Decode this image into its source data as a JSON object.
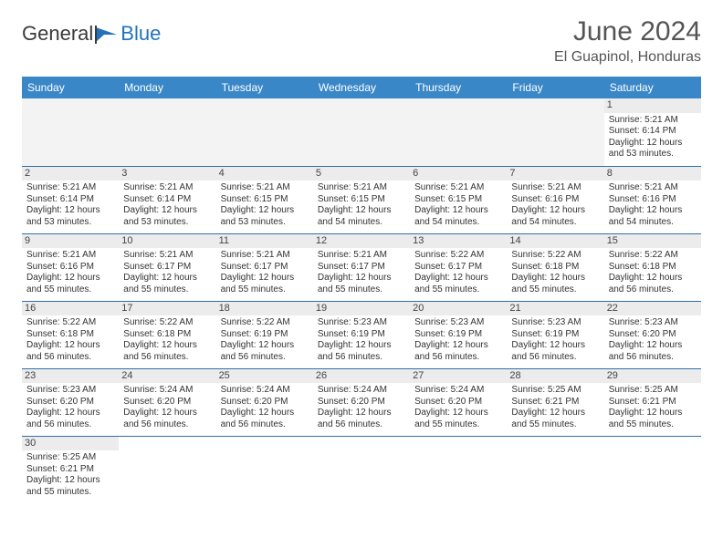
{
  "brand": {
    "part1": "General",
    "part2": "Blue"
  },
  "title": "June 2024",
  "location": "El Guapinol, Honduras",
  "colors": {
    "header_bg": "#3a87c8",
    "header_text": "#ffffff",
    "daynum_bg": "#ececec",
    "empty_bg": "#f3f3f3",
    "row_border": "#2f6fa8",
    "title_color": "#555555",
    "text_color": "#333333",
    "brand_blue": "#2273b9"
  },
  "typography": {
    "title_fontsize": 30,
    "location_fontsize": 16,
    "dayheader_fontsize": 12,
    "daynum_fontsize": 11,
    "cell_fontsize": 10
  },
  "day_headers": [
    "Sunday",
    "Monday",
    "Tuesday",
    "Wednesday",
    "Thursday",
    "Friday",
    "Saturday"
  ],
  "weeks": [
    [
      {
        "n": "",
        "sr": "",
        "ss": "",
        "dl1": "",
        "dl2": "",
        "empty": true
      },
      {
        "n": "",
        "sr": "",
        "ss": "",
        "dl1": "",
        "dl2": "",
        "empty": true
      },
      {
        "n": "",
        "sr": "",
        "ss": "",
        "dl1": "",
        "dl2": "",
        "empty": true
      },
      {
        "n": "",
        "sr": "",
        "ss": "",
        "dl1": "",
        "dl2": "",
        "empty": true
      },
      {
        "n": "",
        "sr": "",
        "ss": "",
        "dl1": "",
        "dl2": "",
        "empty": true
      },
      {
        "n": "",
        "sr": "",
        "ss": "",
        "dl1": "",
        "dl2": "",
        "empty": true
      },
      {
        "n": "1",
        "sr": "Sunrise: 5:21 AM",
        "ss": "Sunset: 6:14 PM",
        "dl1": "Daylight: 12 hours",
        "dl2": "and 53 minutes."
      }
    ],
    [
      {
        "n": "2",
        "sr": "Sunrise: 5:21 AM",
        "ss": "Sunset: 6:14 PM",
        "dl1": "Daylight: 12 hours",
        "dl2": "and 53 minutes."
      },
      {
        "n": "3",
        "sr": "Sunrise: 5:21 AM",
        "ss": "Sunset: 6:14 PM",
        "dl1": "Daylight: 12 hours",
        "dl2": "and 53 minutes."
      },
      {
        "n": "4",
        "sr": "Sunrise: 5:21 AM",
        "ss": "Sunset: 6:15 PM",
        "dl1": "Daylight: 12 hours",
        "dl2": "and 53 minutes."
      },
      {
        "n": "5",
        "sr": "Sunrise: 5:21 AM",
        "ss": "Sunset: 6:15 PM",
        "dl1": "Daylight: 12 hours",
        "dl2": "and 54 minutes."
      },
      {
        "n": "6",
        "sr": "Sunrise: 5:21 AM",
        "ss": "Sunset: 6:15 PM",
        "dl1": "Daylight: 12 hours",
        "dl2": "and 54 minutes."
      },
      {
        "n": "7",
        "sr": "Sunrise: 5:21 AM",
        "ss": "Sunset: 6:16 PM",
        "dl1": "Daylight: 12 hours",
        "dl2": "and 54 minutes."
      },
      {
        "n": "8",
        "sr": "Sunrise: 5:21 AM",
        "ss": "Sunset: 6:16 PM",
        "dl1": "Daylight: 12 hours",
        "dl2": "and 54 minutes."
      }
    ],
    [
      {
        "n": "9",
        "sr": "Sunrise: 5:21 AM",
        "ss": "Sunset: 6:16 PM",
        "dl1": "Daylight: 12 hours",
        "dl2": "and 55 minutes."
      },
      {
        "n": "10",
        "sr": "Sunrise: 5:21 AM",
        "ss": "Sunset: 6:17 PM",
        "dl1": "Daylight: 12 hours",
        "dl2": "and 55 minutes."
      },
      {
        "n": "11",
        "sr": "Sunrise: 5:21 AM",
        "ss": "Sunset: 6:17 PM",
        "dl1": "Daylight: 12 hours",
        "dl2": "and 55 minutes."
      },
      {
        "n": "12",
        "sr": "Sunrise: 5:21 AM",
        "ss": "Sunset: 6:17 PM",
        "dl1": "Daylight: 12 hours",
        "dl2": "and 55 minutes."
      },
      {
        "n": "13",
        "sr": "Sunrise: 5:22 AM",
        "ss": "Sunset: 6:17 PM",
        "dl1": "Daylight: 12 hours",
        "dl2": "and 55 minutes."
      },
      {
        "n": "14",
        "sr": "Sunrise: 5:22 AM",
        "ss": "Sunset: 6:18 PM",
        "dl1": "Daylight: 12 hours",
        "dl2": "and 55 minutes."
      },
      {
        "n": "15",
        "sr": "Sunrise: 5:22 AM",
        "ss": "Sunset: 6:18 PM",
        "dl1": "Daylight: 12 hours",
        "dl2": "and 56 minutes."
      }
    ],
    [
      {
        "n": "16",
        "sr": "Sunrise: 5:22 AM",
        "ss": "Sunset: 6:18 PM",
        "dl1": "Daylight: 12 hours",
        "dl2": "and 56 minutes."
      },
      {
        "n": "17",
        "sr": "Sunrise: 5:22 AM",
        "ss": "Sunset: 6:18 PM",
        "dl1": "Daylight: 12 hours",
        "dl2": "and 56 minutes."
      },
      {
        "n": "18",
        "sr": "Sunrise: 5:22 AM",
        "ss": "Sunset: 6:19 PM",
        "dl1": "Daylight: 12 hours",
        "dl2": "and 56 minutes."
      },
      {
        "n": "19",
        "sr": "Sunrise: 5:23 AM",
        "ss": "Sunset: 6:19 PM",
        "dl1": "Daylight: 12 hours",
        "dl2": "and 56 minutes."
      },
      {
        "n": "20",
        "sr": "Sunrise: 5:23 AM",
        "ss": "Sunset: 6:19 PM",
        "dl1": "Daylight: 12 hours",
        "dl2": "and 56 minutes."
      },
      {
        "n": "21",
        "sr": "Sunrise: 5:23 AM",
        "ss": "Sunset: 6:19 PM",
        "dl1": "Daylight: 12 hours",
        "dl2": "and 56 minutes."
      },
      {
        "n": "22",
        "sr": "Sunrise: 5:23 AM",
        "ss": "Sunset: 6:20 PM",
        "dl1": "Daylight: 12 hours",
        "dl2": "and 56 minutes."
      }
    ],
    [
      {
        "n": "23",
        "sr": "Sunrise: 5:23 AM",
        "ss": "Sunset: 6:20 PM",
        "dl1": "Daylight: 12 hours",
        "dl2": "and 56 minutes."
      },
      {
        "n": "24",
        "sr": "Sunrise: 5:24 AM",
        "ss": "Sunset: 6:20 PM",
        "dl1": "Daylight: 12 hours",
        "dl2": "and 56 minutes."
      },
      {
        "n": "25",
        "sr": "Sunrise: 5:24 AM",
        "ss": "Sunset: 6:20 PM",
        "dl1": "Daylight: 12 hours",
        "dl2": "and 56 minutes."
      },
      {
        "n": "26",
        "sr": "Sunrise: 5:24 AM",
        "ss": "Sunset: 6:20 PM",
        "dl1": "Daylight: 12 hours",
        "dl2": "and 56 minutes."
      },
      {
        "n": "27",
        "sr": "Sunrise: 5:24 AM",
        "ss": "Sunset: 6:20 PM",
        "dl1": "Daylight: 12 hours",
        "dl2": "and 55 minutes."
      },
      {
        "n": "28",
        "sr": "Sunrise: 5:25 AM",
        "ss": "Sunset: 6:21 PM",
        "dl1": "Daylight: 12 hours",
        "dl2": "and 55 minutes."
      },
      {
        "n": "29",
        "sr": "Sunrise: 5:25 AM",
        "ss": "Sunset: 6:21 PM",
        "dl1": "Daylight: 12 hours",
        "dl2": "and 55 minutes."
      }
    ],
    [
      {
        "n": "30",
        "sr": "Sunrise: 5:25 AM",
        "ss": "Sunset: 6:21 PM",
        "dl1": "Daylight: 12 hours",
        "dl2": "and 55 minutes."
      },
      {
        "n": "",
        "sr": "",
        "ss": "",
        "dl1": "",
        "dl2": "",
        "empty": true,
        "blank": true
      },
      {
        "n": "",
        "sr": "",
        "ss": "",
        "dl1": "",
        "dl2": "",
        "empty": true,
        "blank": true
      },
      {
        "n": "",
        "sr": "",
        "ss": "",
        "dl1": "",
        "dl2": "",
        "empty": true,
        "blank": true
      },
      {
        "n": "",
        "sr": "",
        "ss": "",
        "dl1": "",
        "dl2": "",
        "empty": true,
        "blank": true
      },
      {
        "n": "",
        "sr": "",
        "ss": "",
        "dl1": "",
        "dl2": "",
        "empty": true,
        "blank": true
      },
      {
        "n": "",
        "sr": "",
        "ss": "",
        "dl1": "",
        "dl2": "",
        "empty": true,
        "blank": true
      }
    ]
  ]
}
